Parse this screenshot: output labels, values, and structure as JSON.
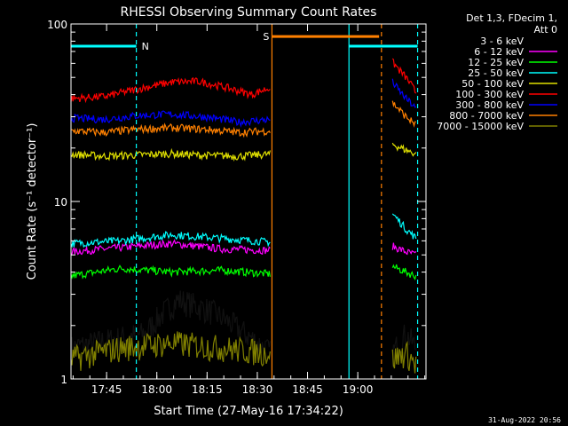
{
  "chart_data": {
    "type": "line",
    "title": "RHESSI Observing Summary Count Rates",
    "xlabel": "Start Time (27-May-16 17:34:22)",
    "ylabel": "Count Rate (s⁻¹ detector⁻¹)",
    "yscale": "log",
    "ylim": [
      1,
      100
    ],
    "xlim_minutes_after_start": [
      0,
      106
    ],
    "x_ticks": [
      "17:45",
      "18:00",
      "18:15",
      "18:30",
      "18:45",
      "19:00"
    ],
    "y_ticks": [
      "1",
      "10",
      "100"
    ],
    "legend_header": [
      "Det 1,3, FDecim 1,",
      "Att 0"
    ],
    "series": [
      {
        "name": "3 - 6 keV",
        "color": "#000000",
        "segments": [
          {
            "x": [
              0,
              22,
              32,
              42,
              52,
              59.6
            ],
            "y": [
              1.5,
              1.8,
              2.8,
              2.4,
              1.8,
              1.4
            ]
          },
          {
            "x": [
              96,
              100,
              103
            ],
            "y": [
              1.4,
              1.8,
              1.5
            ]
          }
        ]
      },
      {
        "name": "6 - 12 keV",
        "color": "#ff00ff",
        "segments": [
          {
            "x": [
              0,
              15,
              30,
              45,
              59.6
            ],
            "y": [
              5.2,
              5.5,
              5.8,
              5.4,
              5.3
            ]
          },
          {
            "x": [
              96,
              100,
              103
            ],
            "y": [
              5.6,
              5.2,
              5.0
            ]
          }
        ]
      },
      {
        "name": "12 - 25 keV",
        "color": "#00ff00",
        "segments": [
          {
            "x": [
              0,
              15,
              30,
              45,
              59.6
            ],
            "y": [
              3.8,
              4.2,
              4.0,
              4.1,
              3.9
            ]
          },
          {
            "x": [
              96,
              100,
              103
            ],
            "y": [
              4.3,
              4.0,
              3.8
            ]
          }
        ]
      },
      {
        "name": "25 - 50 keV",
        "color": "#00ffff",
        "segments": [
          {
            "x": [
              0,
              15,
              30,
              45,
              59.6
            ],
            "y": [
              5.8,
              6.0,
              6.5,
              6.2,
              5.9
            ]
          },
          {
            "x": [
              96,
              100,
              103
            ],
            "y": [
              8.5,
              7.0,
              6.2
            ]
          }
        ]
      },
      {
        "name": "50 - 100 keV",
        "color": "#e0e000",
        "segments": [
          {
            "x": [
              0,
              10,
              20,
              30,
              40,
              50,
              59.6
            ],
            "y": [
              18.5,
              18.0,
              18.3,
              18.6,
              18.2,
              18.0,
              18.5
            ]
          },
          {
            "x": [
              96,
              100,
              103
            ],
            "y": [
              21,
              19.5,
              18.5
            ]
          }
        ]
      },
      {
        "name": "100 - 300 keV",
        "color": "#ff0000",
        "segments": [
          {
            "x": [
              0,
              10,
              20,
              30,
              38,
              46,
              54,
              59.6
            ],
            "y": [
              38,
              39,
              43,
              47,
              47.5,
              44,
              40,
              44
            ]
          },
          {
            "x": [
              96,
              98,
              100,
              102,
              103
            ],
            "y": [
              61,
              55,
              50,
              44,
              41
            ]
          }
        ]
      },
      {
        "name": "300 - 800 keV",
        "color": "#0000ff",
        "segments": [
          {
            "x": [
              0,
              10,
              20,
              30,
              40,
              50,
              59.6
            ],
            "y": [
              29.5,
              29,
              30.5,
              31,
              30,
              28,
              29
            ]
          },
          {
            "x": [
              96,
              98,
              100,
              102,
              103
            ],
            "y": [
              47,
              42,
              38,
              35,
              33
            ]
          }
        ]
      },
      {
        "name": "800 - 7000 keV",
        "color": "#ff8000",
        "segments": [
          {
            "x": [
              0,
              10,
              20,
              30,
              40,
              50,
              59.6
            ],
            "y": [
              25,
              24.5,
              25.5,
              26,
              25.5,
              24.5,
              25
            ]
          },
          {
            "x": [
              96,
              98,
              100,
              102,
              103
            ],
            "y": [
              36,
              33,
              30,
              28,
              27
            ]
          }
        ]
      },
      {
        "name": "7000 - 15000 keV",
        "color": "#808000",
        "segments": [
          {
            "x": [
              0,
              15,
              30,
              45,
              59.6
            ],
            "y": [
              1.3,
              1.5,
              1.6,
              1.5,
              1.4
            ]
          },
          {
            "x": [
              96,
              100,
              103
            ],
            "y": [
              1.3,
              1.4,
              1.2
            ]
          }
        ]
      }
    ],
    "annotations": [
      {
        "label": "N",
        "color": "#00ffff",
        "x_start": 0,
        "x_end": 19.5,
        "y": 75
      },
      {
        "label": "S",
        "color": "#ff8000",
        "x_start": 60,
        "x_end": 92,
        "y": 85
      },
      {
        "label": "",
        "color": "#00ffff",
        "x_start": 83,
        "x_end": 103.5,
        "y": 75
      }
    ],
    "vertical_lines": [
      {
        "x": 19.5,
        "color": "#00ffff",
        "style": "dashed"
      },
      {
        "x": 60,
        "color": "#ff8000",
        "style": "solid"
      },
      {
        "x": 83,
        "color": "#00ffff",
        "style": "solid"
      },
      {
        "x": 92.7,
        "color": "#ff8000",
        "style": "dashed"
      },
      {
        "x": 103.5,
        "color": "#00ffff",
        "style": "dashed"
      }
    ]
  },
  "footer": "31-Aug-2022 20:56"
}
